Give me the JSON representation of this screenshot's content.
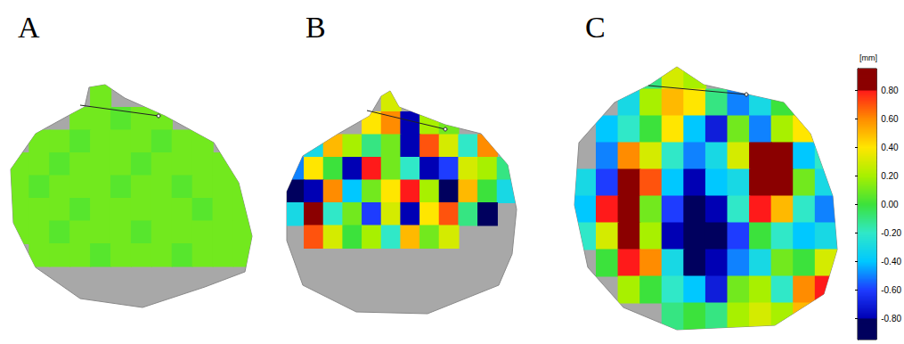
{
  "chart_data": {
    "type": "heatmap",
    "tick_labels": false,
    "panels": [
      {
        "title": "A",
        "cells": [
          [
            null,
            null,
            null,
            null,
            0.1,
            null,
            null,
            null,
            null,
            null,
            null,
            null
          ],
          [
            null,
            null,
            null,
            0.1,
            0.1,
            0.05,
            0.1,
            0.1,
            null,
            null,
            null,
            null
          ],
          [
            null,
            0.1,
            0.1,
            0.05,
            0.1,
            0.1,
            0.1,
            0.05,
            0.1,
            0.1,
            null,
            null
          ],
          [
            0.1,
            0.1,
            0.05,
            0.1,
            0.1,
            0.1,
            0.05,
            0.1,
            0.1,
            0.1,
            0.1,
            null
          ],
          [
            0.1,
            0.05,
            0.1,
            0.1,
            0.1,
            0.05,
            0.1,
            0.1,
            0.05,
            0.1,
            0.1,
            0.1
          ],
          [
            0.1,
            0.1,
            0.1,
            0.05,
            0.1,
            0.1,
            0.1,
            0.1,
            0.1,
            0.05,
            0.1,
            0.1
          ],
          [
            0.1,
            0.1,
            0.05,
            0.1,
            0.1,
            0.1,
            0.05,
            0.1,
            0.1,
            0.1,
            0.1,
            0.1
          ],
          [
            null,
            0.1,
            0.1,
            0.1,
            0.05,
            0.1,
            0.1,
            0.1,
            0.05,
            0.1,
            0.1,
            0.1
          ],
          [
            null,
            null,
            null,
            null,
            null,
            null,
            null,
            null,
            null,
            null,
            null,
            null
          ],
          [
            null,
            null,
            null,
            null,
            null,
            null,
            null,
            null,
            null,
            null,
            null,
            null
          ]
        ]
      },
      {
        "title": "B",
        "cells": [
          [
            null,
            null,
            null,
            null,
            null,
            0.3,
            null,
            null,
            null,
            null,
            null,
            null
          ],
          [
            null,
            null,
            null,
            null,
            0.4,
            0.6,
            -0.8,
            0.2,
            0.1,
            null,
            null,
            null
          ],
          [
            null,
            -0.3,
            0.5,
            0.2,
            -0.1,
            0.1,
            -0.8,
            0.7,
            0.3,
            -0.2,
            0.6,
            null
          ],
          [
            -0.5,
            0.4,
            0.0,
            -0.8,
            0.8,
            0.1,
            -0.2,
            -0.8,
            -0.6,
            0.3,
            0.2,
            -0.1
          ],
          [
            -0.9,
            -0.8,
            0.6,
            -0.4,
            0.1,
            0.4,
            0.8,
            0.2,
            -0.9,
            0.5,
            0.0,
            -0.3
          ],
          [
            -0.3,
            0.9,
            -0.2,
            0.1,
            -0.6,
            0.3,
            -0.8,
            0.4,
            0.7,
            -0.1,
            -0.9,
            null
          ],
          [
            null,
            0.7,
            0.3,
            0.0,
            0.2,
            -0.2,
            0.5,
            0.1,
            0.3,
            null,
            null,
            null
          ],
          [
            null,
            null,
            null,
            null,
            null,
            null,
            null,
            null,
            null,
            null,
            null,
            null
          ],
          [
            null,
            null,
            null,
            null,
            null,
            null,
            null,
            null,
            null,
            null,
            null,
            null
          ],
          [
            null,
            null,
            null,
            null,
            null,
            null,
            null,
            null,
            null,
            null,
            null,
            null
          ]
        ]
      },
      {
        "title": "C",
        "cells": [
          [
            null,
            null,
            null,
            -0.1,
            0.3,
            0.2,
            null,
            null,
            null,
            null,
            null,
            null
          ],
          [
            null,
            null,
            -0.3,
            0.2,
            0.5,
            0.4,
            -0.1,
            -0.5,
            -0.3,
            0.0,
            null,
            null
          ],
          [
            null,
            -0.4,
            -0.2,
            0.0,
            0.4,
            -0.4,
            -0.7,
            0.1,
            -0.5,
            0.2,
            0.4,
            null
          ],
          [
            null,
            -0.5,
            0.6,
            0.3,
            -0.2,
            -0.5,
            -0.3,
            0.3,
            0.9,
            1.0,
            -0.4,
            -0.2
          ],
          [
            -0.3,
            -0.6,
            0.9,
            0.7,
            -0.4,
            -0.8,
            -0.4,
            -0.3,
            0.9,
            1.0,
            0.1,
            -0.3
          ],
          [
            -0.4,
            0.8,
            0.9,
            0.1,
            -0.6,
            -0.9,
            -0.8,
            -0.2,
            0.8,
            0.5,
            -0.2,
            -0.5
          ],
          [
            -0.2,
            0.3,
            1.0,
            0.2,
            -0.8,
            -0.9,
            -0.9,
            -0.6,
            0.0,
            -0.2,
            -0.4,
            -0.3
          ],
          [
            null,
            0.0,
            0.8,
            0.6,
            -0.3,
            -0.9,
            -0.8,
            -0.5,
            -0.3,
            0.1,
            0.0,
            0.3
          ],
          [
            null,
            null,
            0.2,
            0.0,
            -0.2,
            -0.4,
            -0.7,
            0.1,
            0.2,
            -0.2,
            0.6,
            0.8
          ],
          [
            null,
            null,
            null,
            null,
            -0.1,
            0.0,
            -0.1,
            0.2,
            0.3,
            0.2,
            0.5,
            null
          ]
        ]
      }
    ],
    "colorbar": {
      "label": "[mm]",
      "range": [
        -0.95,
        0.95
      ],
      "ticks": [
        {
          "value": 0.8,
          "label": "0.80"
        },
        {
          "value": 0.6,
          "label": "0.60"
        },
        {
          "value": 0.4,
          "label": "0.40"
        },
        {
          "value": 0.2,
          "label": "0.20"
        },
        {
          "value": 0.0,
          "label": "0.00"
        },
        {
          "value": -0.2,
          "label": "-0.20"
        },
        {
          "value": -0.4,
          "label": "-0.40"
        },
        {
          "value": -0.6,
          "label": "-0.60"
        },
        {
          "value": -0.8,
          "label": "-0.80"
        }
      ]
    }
  }
}
